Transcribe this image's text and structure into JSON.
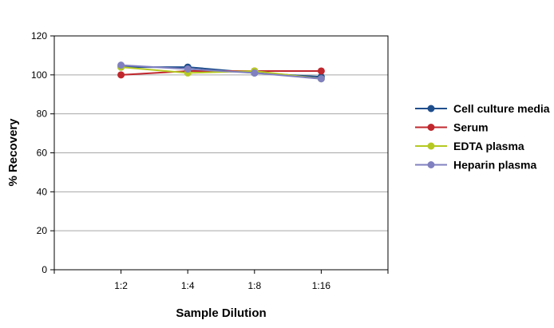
{
  "chart_data": {
    "type": "line",
    "categories": [
      "1:2",
      "1:4",
      "1:8",
      "1:16"
    ],
    "xlabel": "Sample Dilution",
    "ylabel": "% Recovery",
    "ylim": [
      0,
      120
    ],
    "yticks": [
      0,
      20,
      40,
      60,
      80,
      100,
      120
    ],
    "grid": true,
    "legend_position": "right",
    "series": [
      {
        "name": "Cell culture media",
        "color": "#1f4e8c",
        "values": [
          104,
          104,
          101,
          99
        ]
      },
      {
        "name": "Serum",
        "color": "#c0272d",
        "values": [
          100,
          102,
          102,
          102
        ]
      },
      {
        "name": "EDTA plasma",
        "color": "#b5c922",
        "values": [
          104,
          101,
          102,
          98
        ]
      },
      {
        "name": "Heparin plasma",
        "color": "#8080c0",
        "values": [
          105,
          103,
          101,
          98
        ]
      }
    ]
  }
}
